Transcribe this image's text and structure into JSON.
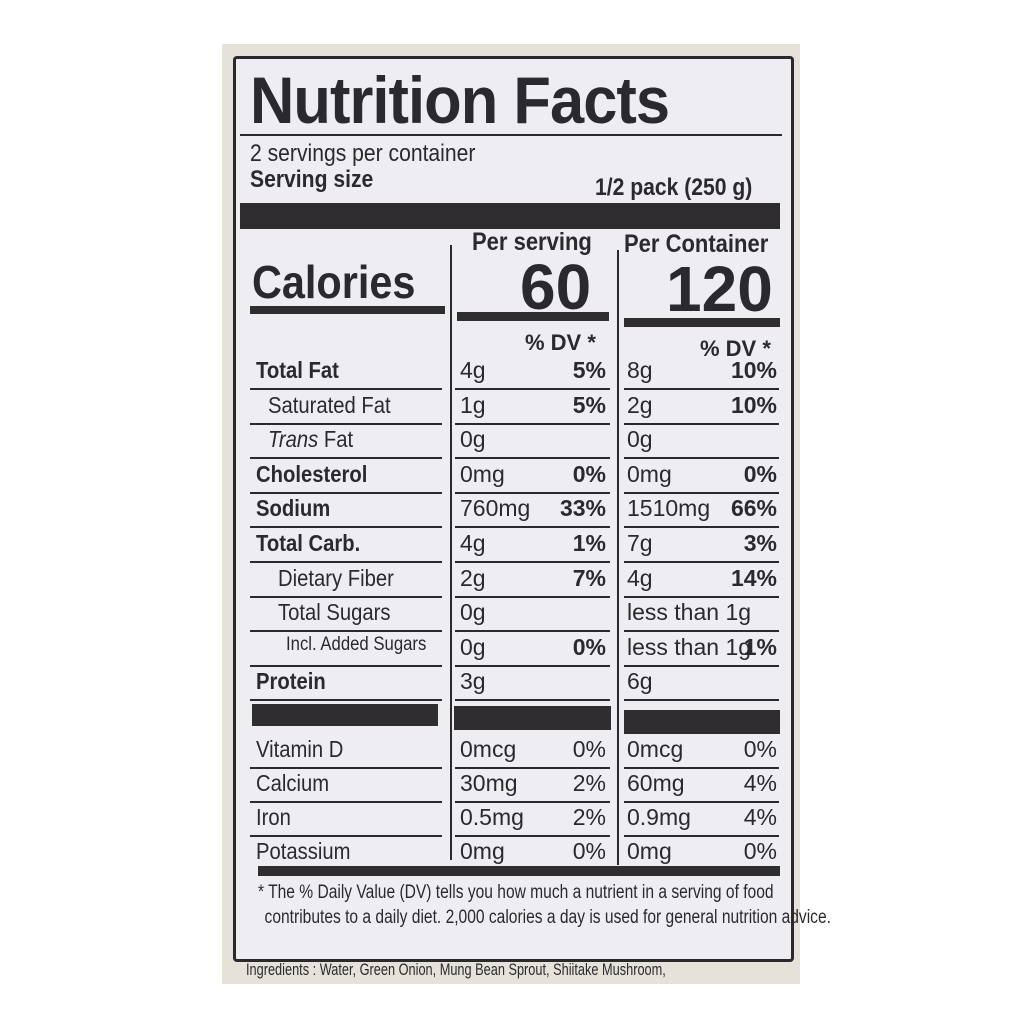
{
  "title": "Nutrition Facts",
  "servings_per_container": "2 servings per container",
  "serving_size_label": "Serving size",
  "serving_size_value": "1/2 pack (250 g)",
  "calories_label": "Calories",
  "per_serving_header": "Per serving",
  "per_container_header": "Per Container",
  "calories_per_serving": "60",
  "calories_per_container": "120",
  "dv_header": "% DV *",
  "nutrients": [
    {
      "name": "Total Fat",
      "bold": true,
      "indent": 0,
      "s_amt": "4g",
      "s_dv": "5%",
      "c_amt": "8g",
      "c_dv": "10%"
    },
    {
      "name": "Saturated Fat",
      "bold": false,
      "indent": 1,
      "s_amt": "1g",
      "s_dv": "5%",
      "c_amt": "2g",
      "c_dv": "10%"
    },
    {
      "name": "Trans Fat",
      "bold": false,
      "indent": 1,
      "italic_prefix": "Trans",
      "s_amt": "0g",
      "s_dv": "",
      "c_amt": "0g",
      "c_dv": ""
    },
    {
      "name": "Cholesterol",
      "bold": true,
      "indent": 0,
      "s_amt": "0mg",
      "s_dv": "0%",
      "c_amt": "0mg",
      "c_dv": "0%"
    },
    {
      "name": "Sodium",
      "bold": true,
      "indent": 0,
      "s_amt": "760mg",
      "s_dv": "33%",
      "c_amt": "1510mg",
      "c_dv": "66%"
    },
    {
      "name": "Total Carb.",
      "bold": true,
      "indent": 0,
      "s_amt": "4g",
      "s_dv": "1%",
      "c_amt": "7g",
      "c_dv": "3%"
    },
    {
      "name": "Dietary Fiber",
      "bold": false,
      "indent": 2,
      "s_amt": "2g",
      "s_dv": "7%",
      "c_amt": "4g",
      "c_dv": "14%"
    },
    {
      "name": "Total Sugars",
      "bold": false,
      "indent": 2,
      "s_amt": "0g",
      "s_dv": "",
      "c_amt": "less than 1g",
      "c_dv": ""
    },
    {
      "name": "Incl. Added Sugars",
      "bold": false,
      "indent": 3,
      "s_amt": "0g",
      "s_dv": "0%",
      "c_amt": "less than 1g",
      "c_dv": "1%"
    },
    {
      "name": "Protein",
      "bold": true,
      "indent": 0,
      "s_amt": "3g",
      "s_dv": "",
      "c_amt": "6g",
      "c_dv": ""
    }
  ],
  "vitamins": [
    {
      "name": "Vitamin D",
      "s_amt": "0mcg",
      "s_dv": "0%",
      "c_amt": "0mcg",
      "c_dv": "0%"
    },
    {
      "name": "Calcium",
      "s_amt": "30mg",
      "s_dv": "2%",
      "c_amt": "60mg",
      "c_dv": "4%"
    },
    {
      "name": "Iron",
      "s_amt": "0.5mg",
      "s_dv": "2%",
      "c_amt": "0.9mg",
      "c_dv": "4%"
    },
    {
      "name": "Potassium",
      "s_amt": "0mg",
      "s_dv": "0%",
      "c_amt": "0mg",
      "c_dv": "0%"
    }
  ],
  "footnote_line1": "* The % Daily Value (DV) tells you how much a nutrient in a serving of food",
  "footnote_line2": "contributes to a daily diet. 2,000 calories a day is used for general nutrition advice.",
  "ingredients": "Ingredients : Water, Green Onion, Mung Bean Sprout, Shiitake Mushroom,"
}
